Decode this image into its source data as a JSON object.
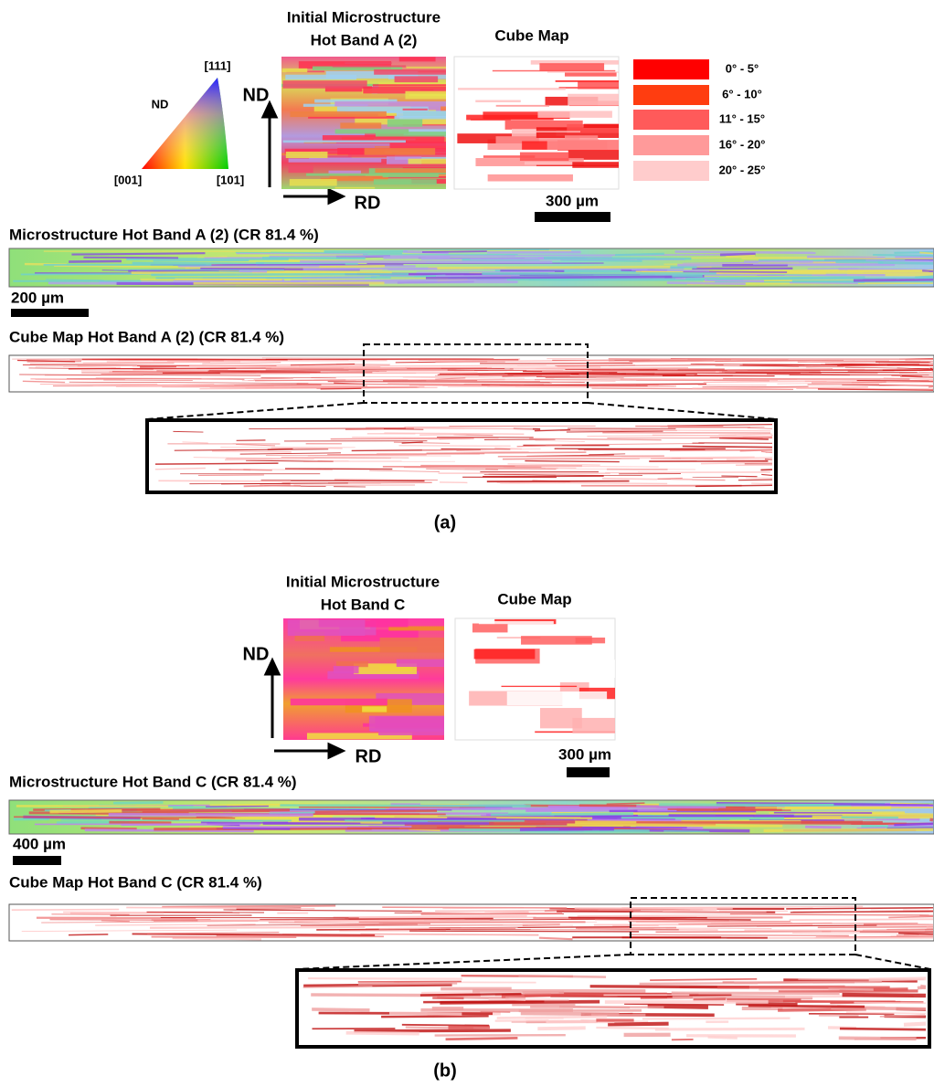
{
  "panel_a": {
    "ipf_key": {
      "center": "ND",
      "top": "[111]",
      "left": "[001]",
      "right": "[101]"
    },
    "initial_title_line1": "Initial Microstructure",
    "initial_title_line2": "Hot Band A (2)",
    "cube_title": "Cube Map",
    "axis_nd": "ND",
    "axis_rd": "RD",
    "legend": [
      "0° - 5°",
      "6° - 10°",
      "11° - 15°",
      "16° - 20°",
      "20° - 25°"
    ],
    "scale_initial": "300 µm",
    "micro_title": "Microstructure Hot Band A (2) (CR 81.4 %)",
    "scale_micro": "200 µm",
    "cube_strip_title": "Cube Map Hot Band A (2) (CR 81.4 %)",
    "label": "(a)"
  },
  "panel_b": {
    "initial_title_line1": "Initial Microstructure",
    "initial_title_line2": "Hot Band C",
    "cube_title": "Cube Map",
    "axis_nd": "ND",
    "axis_rd": "RD",
    "scale_initial": "300 µm",
    "micro_title": "Microstructure Hot Band C (CR 81.4 %)",
    "scale_micro": "400 µm",
    "cube_strip_title": "Cube Map Hot Band C (CR 81.4 %)",
    "label": "(b)"
  }
}
